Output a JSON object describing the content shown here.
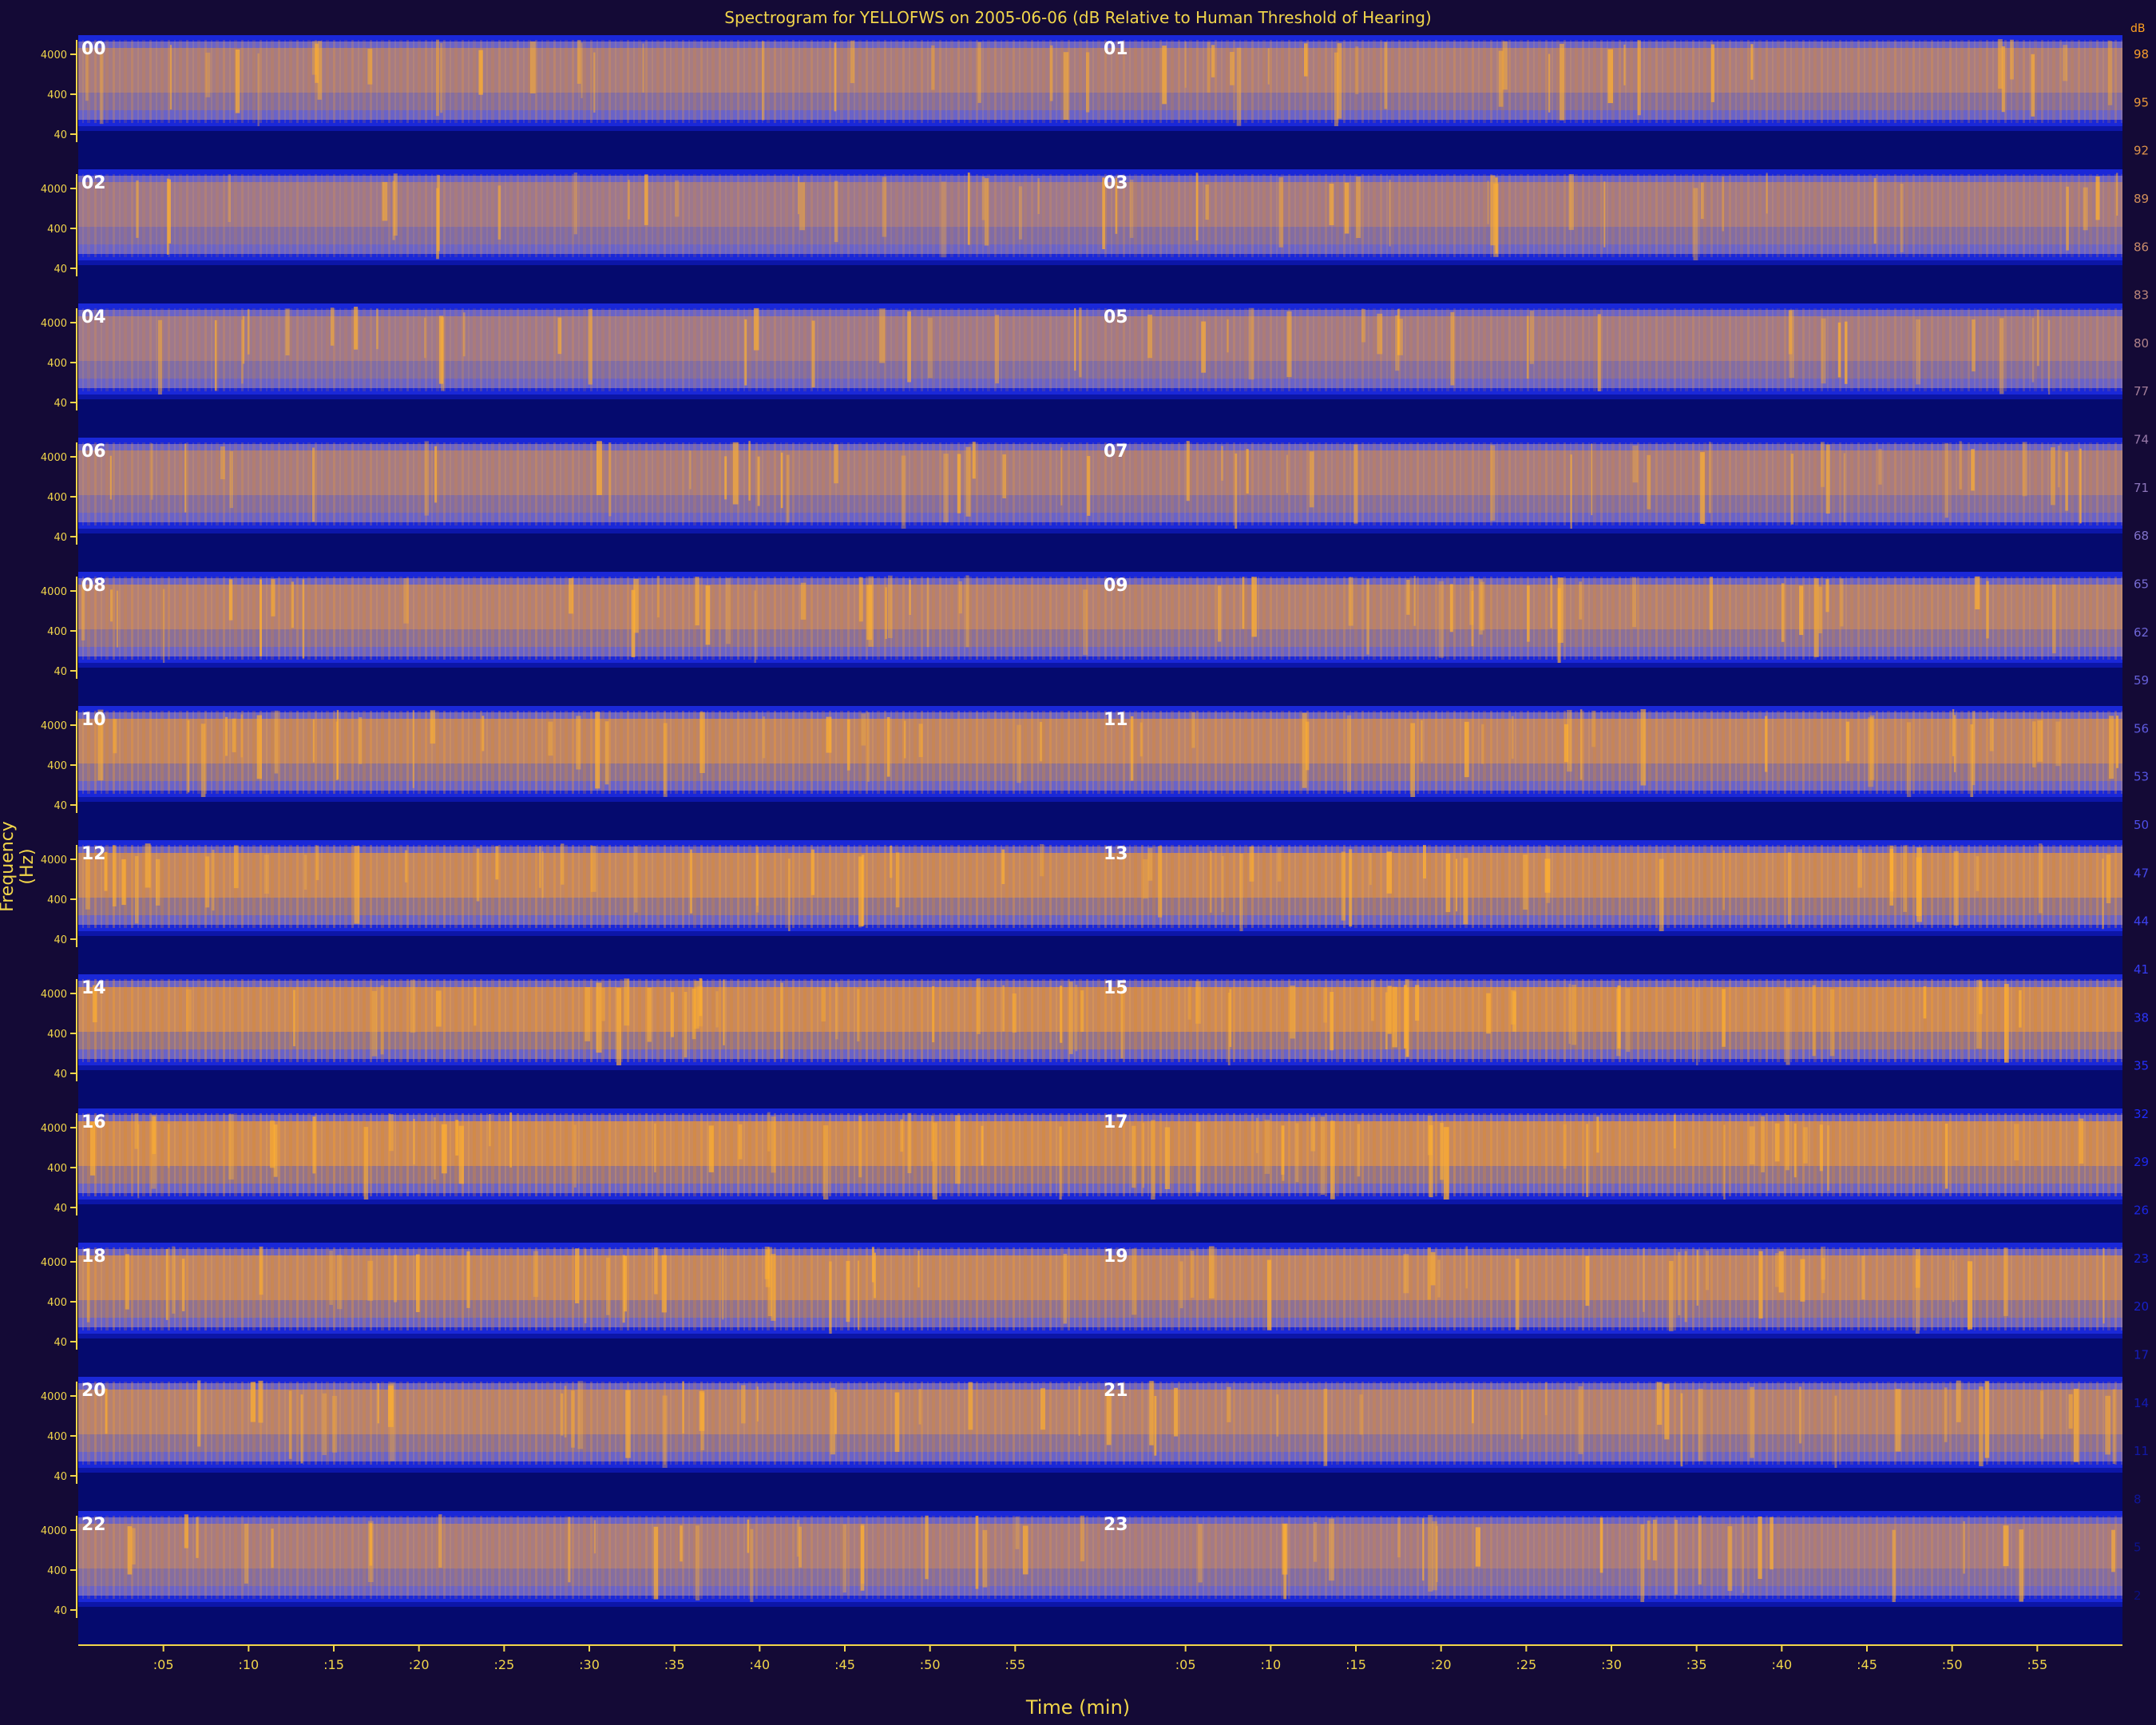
{
  "chart_data": {
    "type": "heatmap",
    "title": "Spectrogram for YELLOFWS on 2005-06-06 (dB Relative to Human Threshold of Hearing)",
    "xlabel": "Time (min)",
    "ylabel": "Frequency (Hz)",
    "hour_labels": [
      "00",
      "01",
      "02",
      "03",
      "04",
      "05",
      "06",
      "07",
      "08",
      "09",
      "10",
      "11",
      "12",
      "13",
      "14",
      "15",
      "16",
      "17",
      "18",
      "19",
      "20",
      "21",
      "22",
      "23"
    ],
    "layout": "12 rows x 2 columns, each panel = 1 hour (0-60 min)",
    "y_ticks": [
      "4000",
      "400",
      "40"
    ],
    "x_ticks": [
      ":05",
      ":10",
      ":15",
      ":20",
      ":25",
      ":30",
      ":35",
      ":40",
      ":45",
      ":50",
      ":55"
    ],
    "x_tick_minutes": [
      5,
      10,
      15,
      20,
      25,
      30,
      35,
      40,
      45,
      50,
      55
    ],
    "colorbar": {
      "label": "dB",
      "ticks": [
        "98",
        "95",
        "92",
        "89",
        "86",
        "83",
        "80",
        "77",
        "74",
        "71",
        "68",
        "65",
        "62",
        "59",
        "56",
        "53",
        "50",
        "47",
        "44",
        "41",
        "38",
        "35",
        "32",
        "29",
        "26",
        "23",
        "20",
        "17",
        "14",
        "11",
        "8",
        "5",
        "2"
      ],
      "min": 0,
      "max": 100,
      "colors": [
        "#0a0f7a",
        "#1f2dff",
        "#7b6fd0",
        "#ffa020"
      ]
    },
    "hour_intensity": [
      0.55,
      0.58,
      0.46,
      0.52,
      0.48,
      0.5,
      0.54,
      0.56,
      0.66,
      0.64,
      0.76,
      0.74,
      0.8,
      0.82,
      0.84,
      0.86,
      0.86,
      0.84,
      0.78,
      0.74,
      0.68,
      0.64,
      0.56,
      0.52
    ],
    "grid": false
  }
}
